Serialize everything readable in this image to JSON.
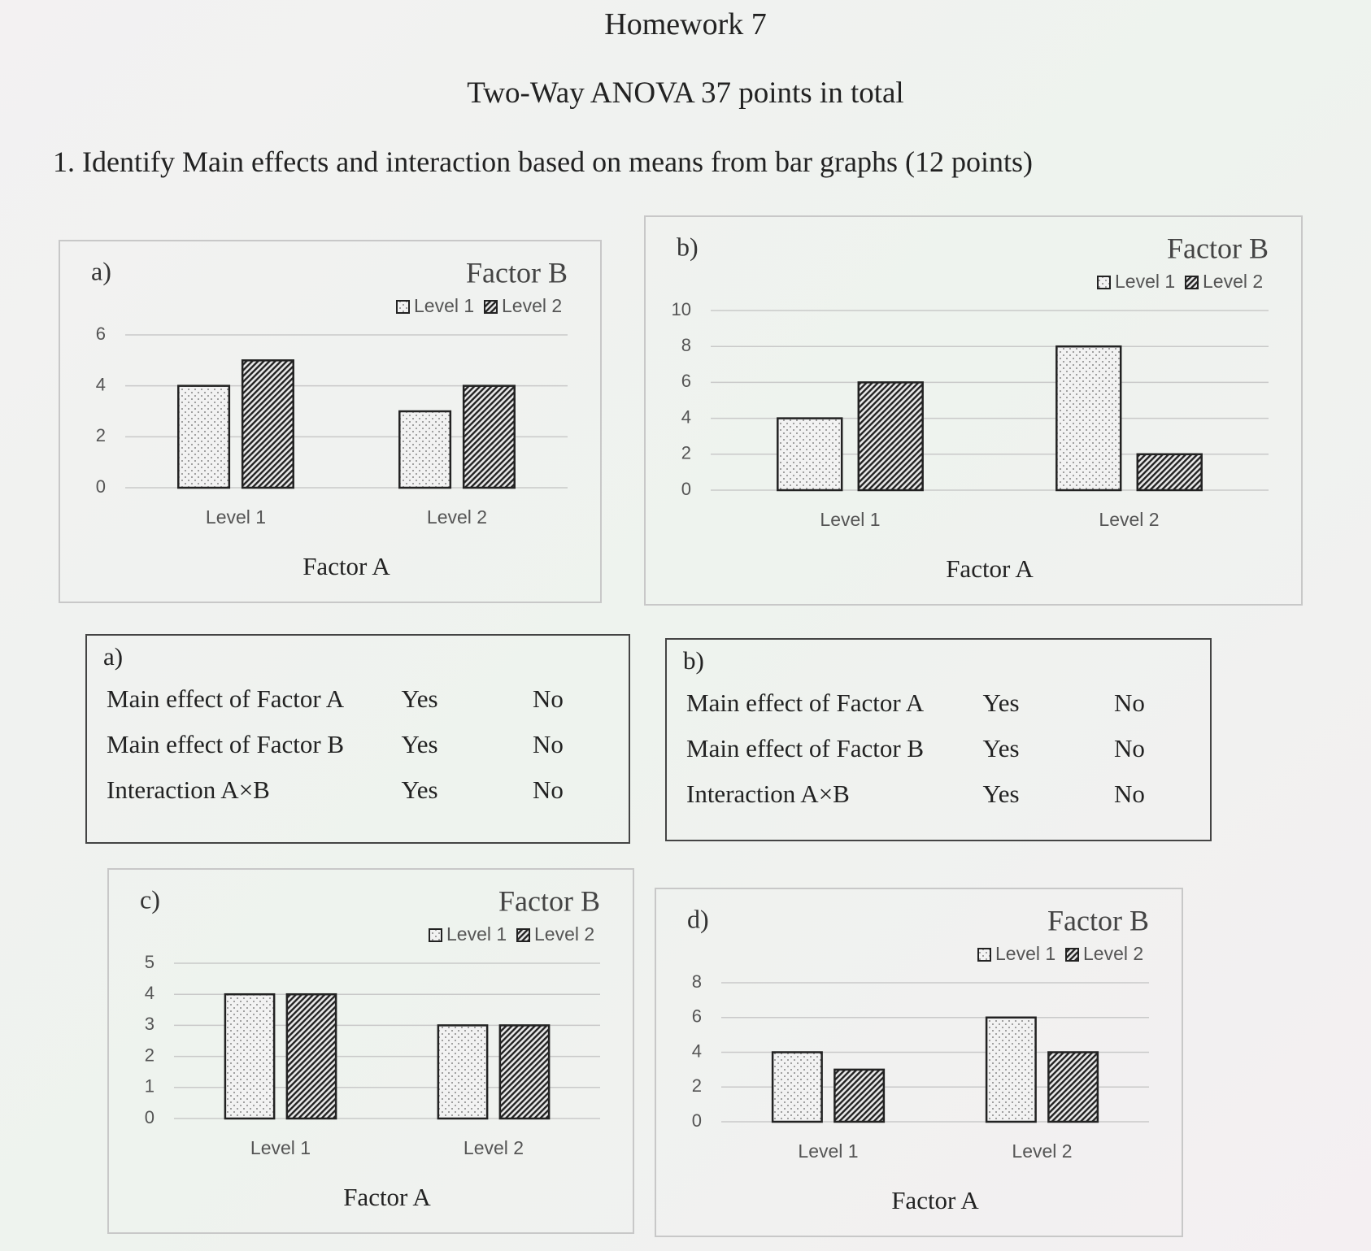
{
  "header": {
    "title": "Homework 7",
    "subtitle": "Two-Way ANOVA  37 points in total"
  },
  "question": "1. Identify Main effects and interaction based on means from bar graphs (12 points)",
  "chart_data": [
    {
      "type": "bar",
      "label": "a)",
      "legend_title": "Factor B",
      "legend": "top-right",
      "x_label": "Factor A",
      "grid": true,
      "categories": [
        "Level 1",
        "Level 2"
      ],
      "series": [
        {
          "name": "Level 1",
          "pattern": "dots",
          "color": "#222222",
          "values": [
            4,
            3
          ]
        },
        {
          "name": "Level 2",
          "pattern": "hatch",
          "color": "#222222",
          "values": [
            5,
            4
          ]
        }
      ],
      "ylim": [
        0,
        6
      ],
      "yticks": [
        0,
        2,
        4,
        6
      ]
    },
    {
      "type": "bar",
      "label": "b)",
      "legend_title": "Factor B",
      "legend": "top-right",
      "x_label": "Factor A",
      "grid": true,
      "categories": [
        "Level 1",
        "Level 2"
      ],
      "series": [
        {
          "name": "Level 1",
          "pattern": "dots",
          "color": "#222222",
          "values": [
            4,
            8
          ]
        },
        {
          "name": "Level 2",
          "pattern": "hatch",
          "color": "#222222",
          "values": [
            6,
            2
          ]
        }
      ],
      "ylim": [
        0,
        10
      ],
      "yticks": [
        0,
        2,
        4,
        6,
        8,
        10
      ]
    },
    {
      "type": "bar",
      "label": "c)",
      "legend_title": "Factor B",
      "legend": "top-right",
      "x_label": "Factor A",
      "grid": true,
      "categories": [
        "Level 1",
        "Level 2"
      ],
      "series": [
        {
          "name": "Level 1",
          "pattern": "dots",
          "color": "#222222",
          "values": [
            4,
            3
          ]
        },
        {
          "name": "Level 2",
          "pattern": "hatch",
          "color": "#222222",
          "values": [
            4,
            3
          ]
        }
      ],
      "ylim": [
        0,
        5
      ],
      "yticks": [
        0,
        1,
        2,
        3,
        4,
        5
      ]
    },
    {
      "type": "bar",
      "label": "d)",
      "legend_title": "Factor B",
      "legend": "top-right",
      "x_label": "Factor A",
      "grid": true,
      "categories": [
        "Level 1",
        "Level 2"
      ],
      "series": [
        {
          "name": "Level 1",
          "pattern": "dots",
          "color": "#222222",
          "values": [
            4,
            6
          ]
        },
        {
          "name": "Level 2",
          "pattern": "hatch",
          "color": "#222222",
          "values": [
            3,
            4
          ]
        }
      ],
      "ylim": [
        0,
        8
      ],
      "yticks": [
        0,
        2,
        4,
        6,
        8
      ]
    }
  ],
  "answer_boxes": [
    {
      "label": "a)",
      "rows": [
        [
          "Main effect of Factor A",
          "Yes",
          "No"
        ],
        [
          "Main effect of Factor B",
          "Yes",
          "No"
        ],
        [
          "Interaction A×B",
          "Yes",
          "No"
        ]
      ]
    },
    {
      "label": "b)",
      "rows": [
        [
          "Main effect of Factor A",
          "Yes",
          "No"
        ],
        [
          "Main effect of Factor B",
          "Yes",
          "No"
        ],
        [
          "Interaction A×B",
          "Yes",
          "No"
        ]
      ]
    }
  ]
}
